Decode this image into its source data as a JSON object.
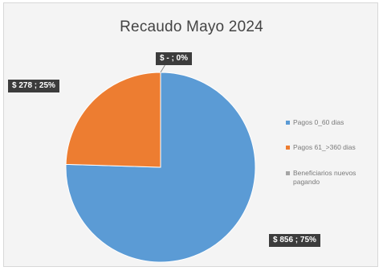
{
  "chart_data": {
    "type": "pie",
    "title": "Recaudo Mayo 2024",
    "categories": [
      "Pagos 0_60 dias",
      "Pagos 61_>360 dias",
      "Beneficiarios nuevos pagando"
    ],
    "values": [
      856,
      278,
      0
    ],
    "percentages": [
      75,
      25,
      0
    ],
    "colors": [
      "#5b9bd5",
      "#ed7d31",
      "#a5a5a5"
    ],
    "data_labels": [
      "$ 856 ; 75%",
      "$ 278 ; 25%",
      "$ - ; 0%"
    ],
    "legend_position": "right"
  }
}
